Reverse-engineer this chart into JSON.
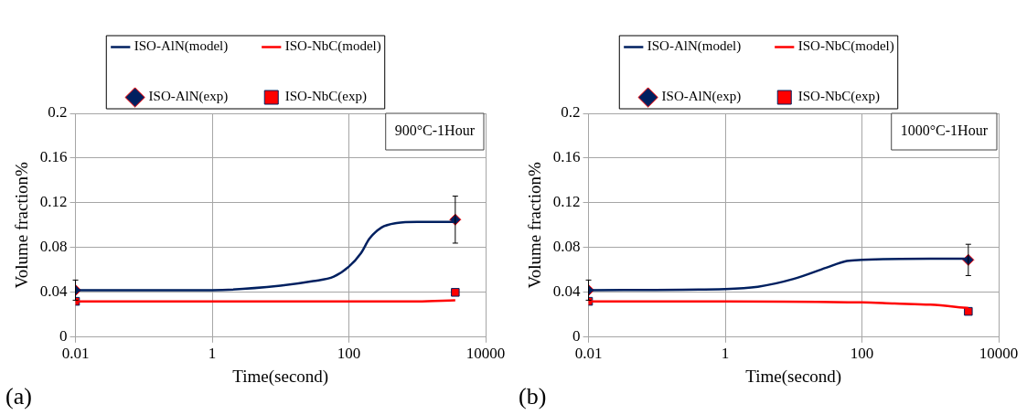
{
  "chart_data": [
    {
      "type": "line",
      "xlabel": "Time(second)",
      "ylabel": "Volume fraction%",
      "log": "x",
      "grid": true,
      "legend": "top",
      "xlim": [
        0.01,
        10000
      ],
      "xticks": [
        0.01,
        1,
        100,
        10000
      ],
      "ylim": [
        0,
        0.2
      ],
      "yticks": [
        0,
        0.04,
        0.08,
        0.12,
        0.16,
        0.2
      ],
      "annotations": [
        "(a)",
        "900°C-1Hour"
      ],
      "series": [
        {
          "name": "ISO-AlN(model)",
          "type": "line",
          "marker": "none",
          "color": "#002060",
          "x": [
            0.01,
            1,
            10,
            30,
            60,
            100,
            150,
            200,
            300,
            500,
            1000,
            3600
          ],
          "values": [
            0.042,
            0.042,
            0.046,
            0.05,
            0.054,
            0.063,
            0.075,
            0.088,
            0.098,
            0.102,
            0.103,
            0.103
          ]
        },
        {
          "name": "ISO-NbC(model)",
          "type": "line",
          "marker": "none",
          "color": "#ff0000",
          "x": [
            0.01,
            1,
            100,
            1000,
            3600
          ],
          "values": [
            0.032,
            0.032,
            0.032,
            0.032,
            0.033
          ]
        },
        {
          "name": "ISO-AlN(exp)",
          "type": "scatter",
          "marker": "diamond",
          "color": "#002060",
          "x": [
            0.01,
            3600
          ],
          "values": [
            0.042,
            0.105
          ],
          "errors": [
            0.009,
            0.021
          ]
        },
        {
          "name": "ISO-NbC(exp)",
          "type": "scatter",
          "marker": "square",
          "color": "#ff0000",
          "x": [
            0.01,
            3600
          ],
          "values": [
            0.032,
            0.04
          ]
        }
      ]
    },
    {
      "type": "line",
      "xlabel": "Time(second)",
      "ylabel": "Volume fraction%",
      "log": "x",
      "grid": true,
      "legend": "top",
      "xlim": [
        0.01,
        10000
      ],
      "xticks": [
        0.01,
        1,
        100,
        10000
      ],
      "ylim": [
        0,
        0.2
      ],
      "yticks": [
        0,
        0.04,
        0.08,
        0.12,
        0.16,
        0.2
      ],
      "annotations": [
        "(b)",
        "1000°C-1Hour"
      ],
      "series": [
        {
          "name": "ISO-AlN(model)",
          "type": "line",
          "marker": "none",
          "color": "#002060",
          "x": [
            0.01,
            1,
            3,
            10,
            30,
            60,
            100,
            1000,
            3600
          ],
          "values": [
            0.042,
            0.043,
            0.045,
            0.052,
            0.062,
            0.068,
            0.069,
            0.07,
            0.07
          ]
        },
        {
          "name": "ISO-NbC(model)",
          "type": "line",
          "marker": "none",
          "color": "#ff0000",
          "x": [
            0.01,
            1,
            100,
            300,
            1000,
            3600
          ],
          "values": [
            0.032,
            0.032,
            0.031,
            0.03,
            0.029,
            0.026
          ]
        },
        {
          "name": "ISO-AlN(exp)",
          "type": "scatter",
          "marker": "diamond",
          "color": "#002060",
          "x": [
            0.01,
            3600
          ],
          "values": [
            0.042,
            0.069
          ],
          "errors": [
            0.009,
            0.014
          ]
        },
        {
          "name": "ISO-NbC(exp)",
          "type": "scatter",
          "marker": "square",
          "color": "#ff0000",
          "x": [
            0.01,
            3600
          ],
          "values": [
            0.032,
            0.023
          ]
        }
      ]
    }
  ]
}
